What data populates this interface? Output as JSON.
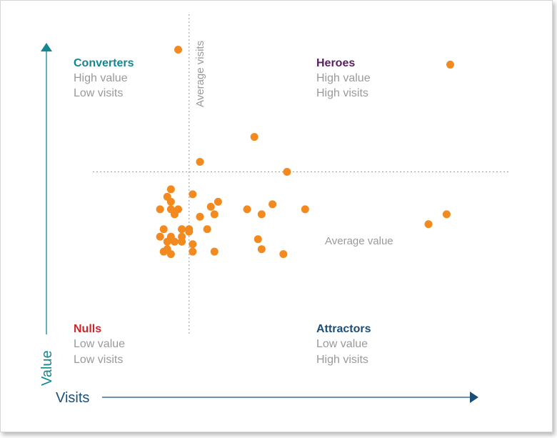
{
  "colors": {
    "converters": "#13878f",
    "heroes": "#5a1f60",
    "nulls": "#d0232a",
    "attractors": "#1b4f7a",
    "value_axis": "#13878f",
    "visits_axis": "#1b4f7a",
    "points": "#f28a1f",
    "reference": "#9a9a9a"
  },
  "quadrants": {
    "converters": {
      "title": "Converters",
      "line1": "High value",
      "line2": "Low visits"
    },
    "heroes": {
      "title": "Heroes",
      "line1": "High value",
      "line2": "High visits"
    },
    "nulls": {
      "title": "Nulls",
      "line1": "Low value",
      "line2": "Low visits"
    },
    "attractors": {
      "title": "Attractors",
      "line1": "Low value",
      "line2": "High visits"
    }
  },
  "chart_data": {
    "type": "scatter",
    "title": "",
    "xlabel": "Visits",
    "ylabel": "Value",
    "xlim": [
      0,
      100
    ],
    "ylim": [
      0,
      100
    ],
    "reference_lines": {
      "average_visits": {
        "x": 22,
        "label": "Average visits"
      },
      "average_value": {
        "y": 50,
        "label": "Average value"
      }
    },
    "series": [
      {
        "name": "customers",
        "points": [
          [
            19,
            99
          ],
          [
            94,
            93
          ],
          [
            40,
            64
          ],
          [
            25,
            54
          ],
          [
            49,
            50
          ],
          [
            17,
            43
          ],
          [
            23,
            41
          ],
          [
            16,
            40
          ],
          [
            17,
            38
          ],
          [
            30,
            38
          ],
          [
            45,
            37
          ],
          [
            28,
            36
          ],
          [
            14,
            35
          ],
          [
            17,
            35
          ],
          [
            19,
            35
          ],
          [
            38,
            35
          ],
          [
            54,
            35
          ],
          [
            18,
            33
          ],
          [
            29,
            33
          ],
          [
            42,
            33
          ],
          [
            25,
            32
          ],
          [
            88,
            29
          ],
          [
            93,
            33
          ],
          [
            15,
            27
          ],
          [
            20,
            27
          ],
          [
            22,
            27
          ],
          [
            22,
            26
          ],
          [
            27,
            27
          ],
          [
            14,
            24
          ],
          [
            17,
            24
          ],
          [
            20,
            24
          ],
          [
            41,
            23
          ],
          [
            16,
            22
          ],
          [
            18,
            22
          ],
          [
            20,
            22
          ],
          [
            23,
            21
          ],
          [
            16,
            19
          ],
          [
            23,
            18
          ],
          [
            42,
            19
          ],
          [
            15,
            18
          ],
          [
            17,
            17
          ],
          [
            29,
            18
          ],
          [
            48,
            17
          ]
        ]
      }
    ]
  }
}
